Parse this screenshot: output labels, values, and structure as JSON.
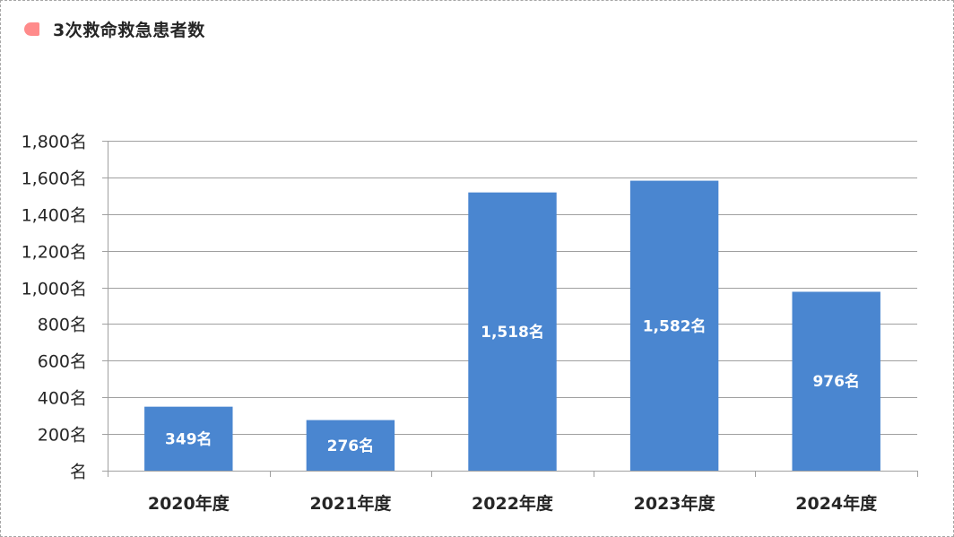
{
  "chart_data": {
    "type": "bar",
    "title": "3次救命救急患者数",
    "categories": [
      "2020年度",
      "2021年度",
      "2022年度",
      "2023年度",
      "2024年度"
    ],
    "series": [
      {
        "values": [
          349,
          276,
          1518,
          1582,
          976
        ]
      }
    ],
    "data_labels": [
      "349名",
      "276名",
      "1,518名",
      "1,582名",
      "976名"
    ],
    "y_ticks": [
      0,
      200,
      400,
      600,
      800,
      1000,
      1200,
      1400,
      1600,
      1800
    ],
    "y_tick_labels": [
      "名",
      "200名",
      "400名",
      "600名",
      "800名",
      "1,000名",
      "1,200名",
      "1,400名",
      "1,600名",
      "1,800名"
    ],
    "ylim": [
      0,
      1800
    ],
    "xlabel": "",
    "ylabel": "",
    "grid": true,
    "legend": "none",
    "colors": {
      "bar": "#4a86d0",
      "title_marker": "#ff8b8b",
      "grid": "#a0a0a0",
      "text": "#262626"
    }
  }
}
